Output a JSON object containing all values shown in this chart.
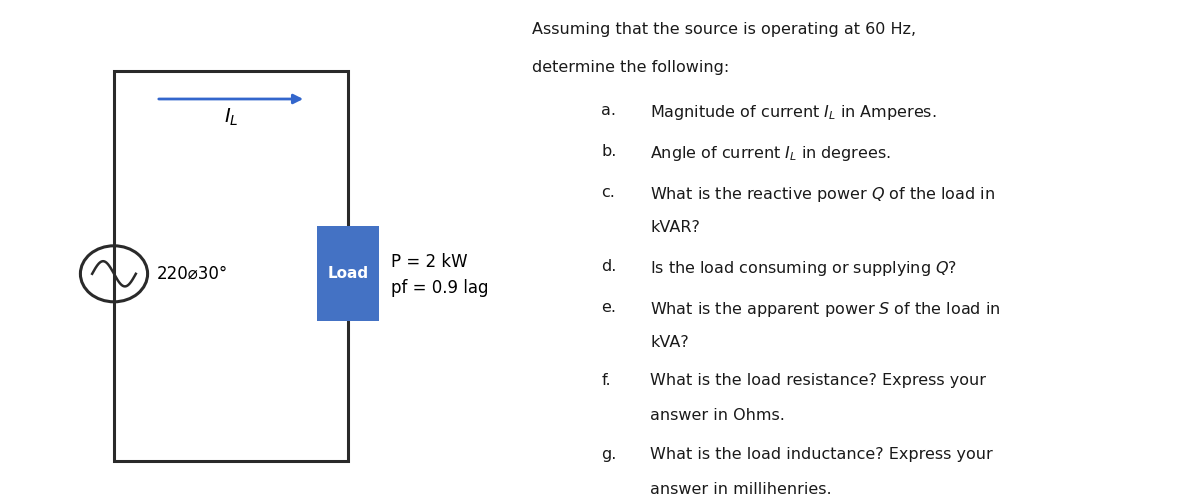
{
  "bg_color": "#ffffff",
  "circuit": {
    "source_label": "220⌀30°",
    "arrow_color": "#3366cc",
    "load_color": "#4472c4",
    "load_label": "Load",
    "load_line1": "P = 2 kW",
    "load_line2": "pf = 0.9 lag",
    "line_color": "#2a2a2a",
    "line_width": 2.2
  },
  "questions": {
    "intro_line1": "Assuming that the source is operating at 60 Hz,",
    "intro_line2": "determine the following:",
    "items": [
      [
        "a.",
        "Magnitude of current $I_L$ in Amperes."
      ],
      [
        "b.",
        "Angle of current $I_L$ in degrees."
      ],
      [
        "c.",
        "What is the reactive power $Q$ of the load in",
        "kVAR?"
      ],
      [
        "d.",
        "Is the load consuming or supplying $Q$?"
      ],
      [
        "e.",
        "What is the apparent power $S$ of the load in",
        "kVA?"
      ],
      [
        "f.",
        "What is the load resistance? Express your",
        "answer in Ohms."
      ],
      [
        "g.",
        "What is the load inductance? Express your",
        "answer in millihenries."
      ]
    ],
    "text_color": "#1a1a1a",
    "font_size": 11.5
  }
}
